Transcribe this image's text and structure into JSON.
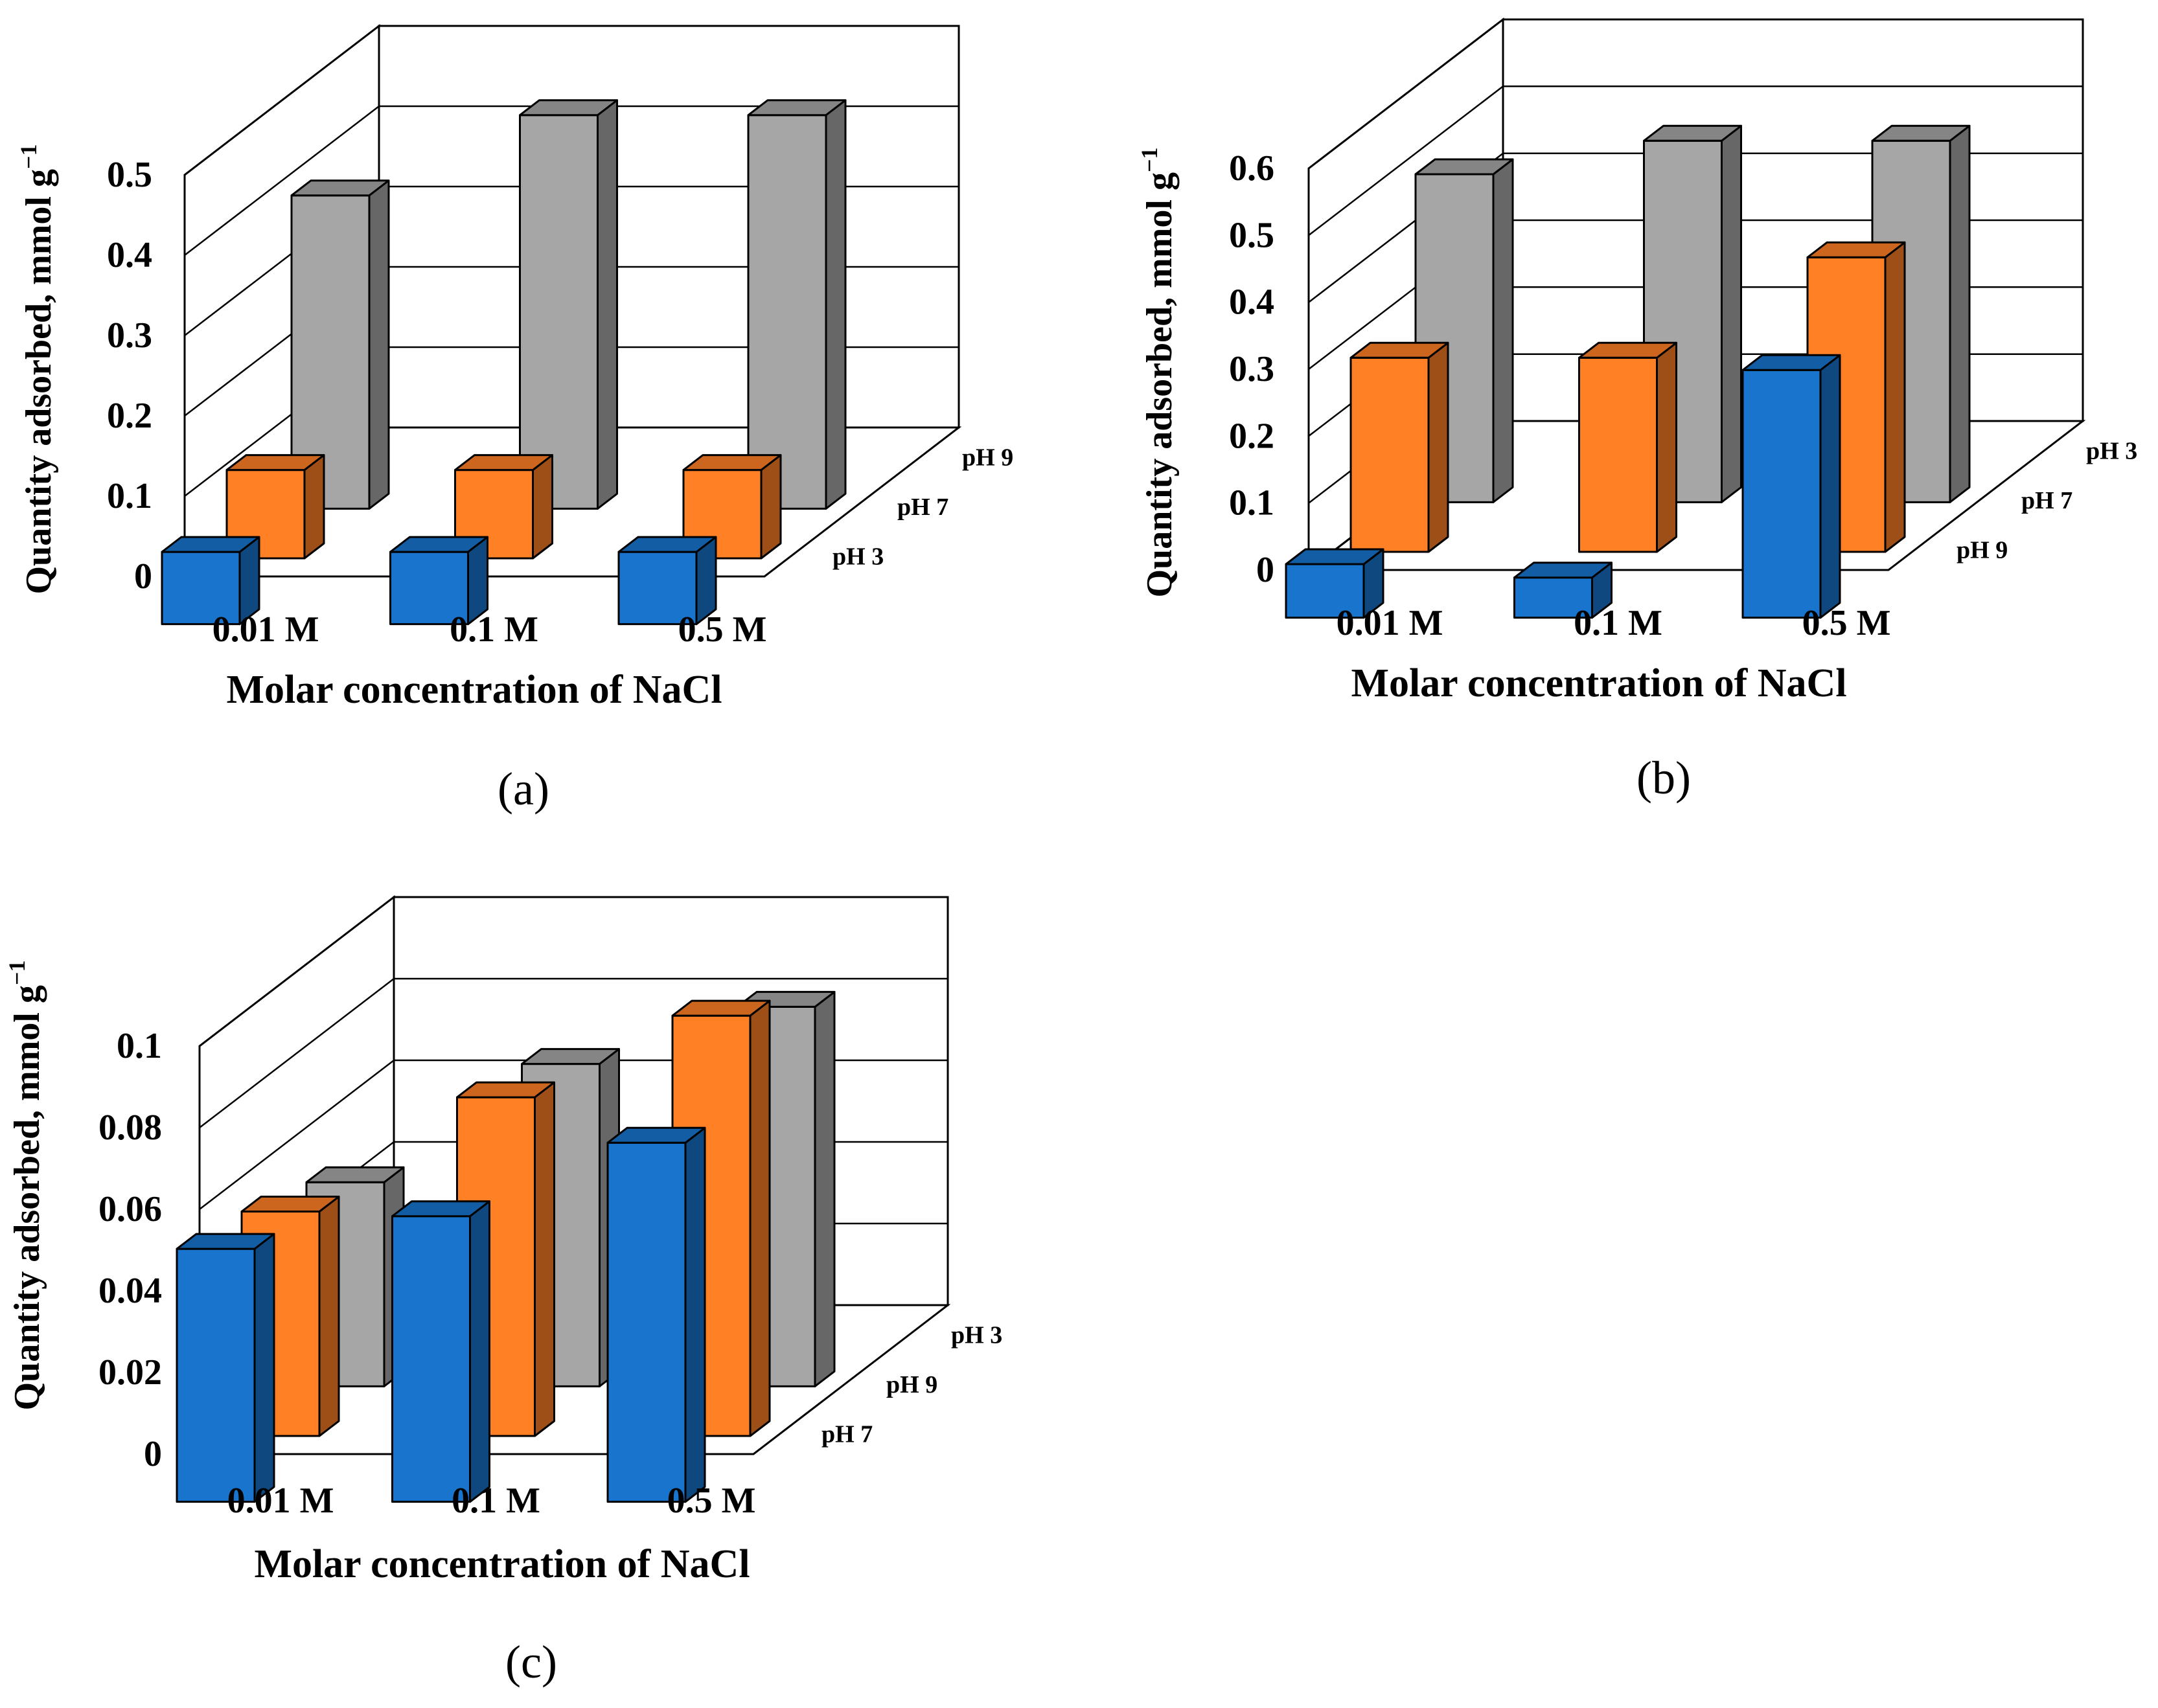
{
  "chart_data": [
    {
      "panel": "(a)",
      "type": "bar3d",
      "ylabel": "Quantity adsorbed, mmol g",
      "ylabel_sup": "−1",
      "xlabel": "Molar concentration of NaCl",
      "categories": [
        "0.01 M",
        "0.1 M",
        "0.5 M"
      ],
      "yticks": [
        "0",
        "0.1",
        "0.2",
        "0.3",
        "0.4",
        "0.5"
      ],
      "ylim": [
        0,
        0.5
      ],
      "depth_labels": [
        "pH 3",
        "pH 7",
        "pH 9"
      ],
      "series": [
        {
          "name": "pH 3",
          "color": "#1874CD",
          "values": [
            0.09,
            0.09,
            0.09
          ]
        },
        {
          "name": "pH 7",
          "color": "#FF8025",
          "values": [
            0.11,
            0.11,
            0.11
          ]
        },
        {
          "name": "pH 9",
          "color": "#A6A6A6",
          "values": [
            0.39,
            0.49,
            0.49
          ]
        }
      ]
    },
    {
      "panel": "(b)",
      "type": "bar3d",
      "ylabel": "Quantity adsorbed, mmol g",
      "ylabel_sup": "−1",
      "xlabel": "Molar concentration of NaCl",
      "categories": [
        "0.01 M",
        "0.1 M",
        "0.5 M"
      ],
      "yticks": [
        "0",
        "0.1",
        "0.2",
        "0.3",
        "0.4",
        "0.5",
        "0.6"
      ],
      "ylim": [
        0,
        0.6
      ],
      "depth_labels": [
        "pH 9",
        "pH 7",
        "pH 3"
      ],
      "series": [
        {
          "name": "pH 9",
          "color": "#1874CD",
          "values": [
            0.08,
            0.06,
            0.37
          ]
        },
        {
          "name": "pH 7",
          "color": "#FF8025",
          "values": [
            0.29,
            0.29,
            0.44
          ]
        },
        {
          "name": "pH 3",
          "color": "#A6A6A6",
          "values": [
            0.49,
            0.54,
            0.54
          ]
        }
      ]
    },
    {
      "panel": "(c)",
      "type": "bar3d",
      "ylabel": "Quantity adsorbed, mmol g",
      "ylabel_sup": "−1",
      "xlabel": "Molar concentration of NaCl",
      "categories": [
        "0.01 M",
        "0.1 M",
        "0.5 M"
      ],
      "yticks": [
        "0",
        "0.02",
        "0.04",
        "0.06",
        "0.08",
        "0.1"
      ],
      "ylim": [
        0,
        0.1
      ],
      "depth_labels": [
        "pH 7",
        "pH 9",
        "pH 3"
      ],
      "series": [
        {
          "name": "pH 7",
          "color": "#1874CD",
          "values": [
            0.062,
            0.07,
            0.088
          ]
        },
        {
          "name": "pH 9",
          "color": "#FF8025",
          "values": [
            0.055,
            0.083,
            0.103
          ]
        },
        {
          "name": "pH 3",
          "color": "#A6A6A6",
          "values": [
            0.05,
            0.079,
            0.093
          ]
        }
      ]
    }
  ]
}
